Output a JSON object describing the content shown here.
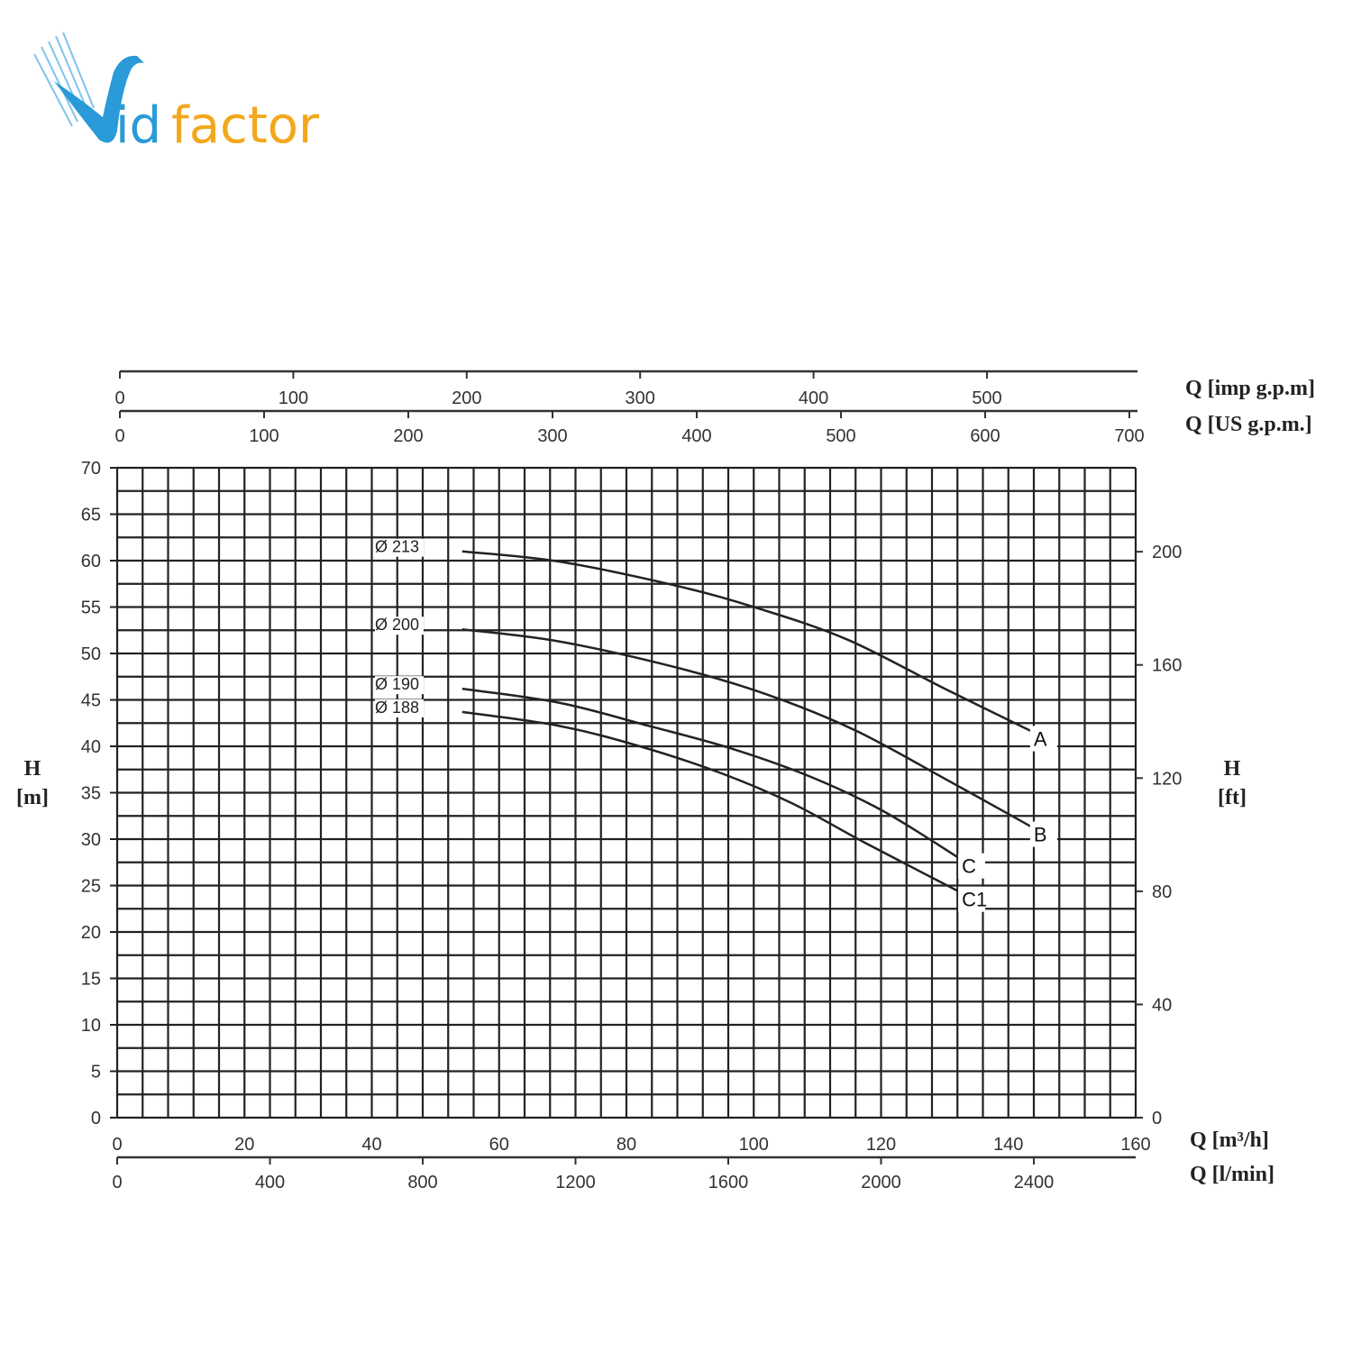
{
  "logo": {
    "text_v": "V",
    "text_id": "id",
    "text_factor": "factor",
    "colors": {
      "blue": "#2a9ad8",
      "orange": "#f2a81d"
    }
  },
  "chart_data": {
    "type": "line",
    "title": "",
    "xlabel": "Q [m³/h]",
    "ylabel": "H [m]",
    "xlim": [
      0,
      160
    ],
    "ylim": [
      0,
      70
    ],
    "grid": true,
    "x_ticks": [
      "0",
      "20",
      "40",
      "60",
      "80",
      "100",
      "120",
      "140",
      "160"
    ],
    "y_ticks": [
      "0",
      "5",
      "10",
      "15",
      "20",
      "25",
      "30",
      "35",
      "40",
      "45",
      "50",
      "55",
      "60",
      "65",
      "70"
    ],
    "secondary_axes": {
      "bottom_lmin": {
        "label": "Q [l/min]",
        "ticks": [
          "0",
          "400",
          "800",
          "1200",
          "1600",
          "2000",
          "2400"
        ]
      },
      "top_imp_gpm": {
        "label": "Q [imp g.p.m]",
        "ticks": [
          "0",
          "100",
          "200",
          "300",
          "400",
          "500"
        ]
      },
      "top_us_gpm": {
        "label": "Q [US g.p.m.]",
        "ticks": [
          "0",
          "100",
          "200",
          "300",
          "400",
          "500",
          "600",
          "700"
        ]
      },
      "right_ft": {
        "label_top": "H",
        "label_bottom": "[ft]",
        "ticks": [
          "0",
          "40",
          "80",
          "120",
          "160",
          "200"
        ]
      }
    },
    "left_label": {
      "top": "H",
      "bottom": "[m]"
    },
    "bottom_label_m3h": "Q [m³/h]",
    "series": [
      {
        "name": "Ø 213",
        "end_label": "A",
        "color": "#222222",
        "label_color": "#111111",
        "x": [
          54.2,
          69.4,
          87.8,
          100.5,
          114.7,
          130.3,
          143.7
        ],
        "y": [
          61.0,
          59.9,
          57.3,
          54.9,
          51.5,
          46.1,
          41.6
        ]
      },
      {
        "name": "Ø 200",
        "end_label": "B",
        "color": "#222222",
        "label_color": "#111111",
        "x": [
          54.2,
          69.4,
          87.8,
          102.0,
          116.0,
          130.3,
          143.7
        ],
        "y": [
          52.6,
          51.3,
          48.5,
          45.6,
          41.7,
          36.4,
          31.3
        ]
      },
      {
        "name": "Ø 190",
        "end_label": "C",
        "color": "#222222",
        "label_color": "#e0202a",
        "x": [
          54.2,
          69.4,
          83.5,
          96.3,
          109.0,
          120.4,
          132.4
        ],
        "y": [
          46.2,
          44.7,
          42.2,
          39.8,
          36.7,
          33.0,
          27.9
        ]
      },
      {
        "name": "Ø 188",
        "end_label": "C1",
        "color": "#222222",
        "label_color": "#111111",
        "x": [
          54.2,
          69.4,
          82.1,
          94.9,
          106.2,
          117.5,
          132.4
        ],
        "y": [
          43.7,
          42.2,
          40.0,
          37.1,
          33.8,
          29.6,
          24.3
        ]
      }
    ]
  }
}
